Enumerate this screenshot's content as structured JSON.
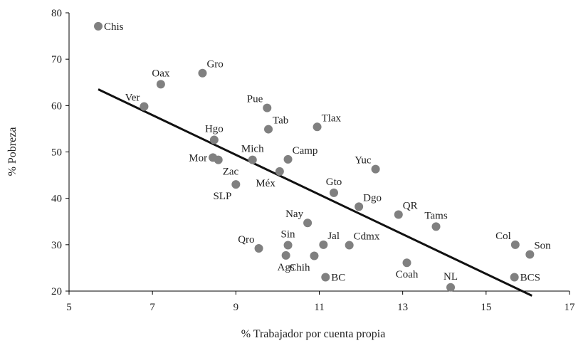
{
  "chart_data": {
    "type": "scatter",
    "title": "",
    "xlabel": "% Trabajador por cuenta propia",
    "ylabel": "% Pobreza",
    "xlim": [
      5,
      17
    ],
    "ylim": [
      20,
      80
    ],
    "xticks": [
      5,
      7,
      9,
      11,
      13,
      15,
      17
    ],
    "yticks": [
      20,
      30,
      40,
      50,
      60,
      70,
      80
    ],
    "grid": false,
    "colors": {
      "points": "#808080",
      "trendline": "#111111",
      "axis": "#000000",
      "text": "#222222"
    },
    "trendline": {
      "x": [
        5.7,
        16.1
      ],
      "y": [
        63.5,
        19.0
      ]
    },
    "points": [
      {
        "label": "Chis",
        "x": 5.7,
        "y": 77.1,
        "pos": "right"
      },
      {
        "label": "Oax",
        "x": 7.2,
        "y": 64.6,
        "pos": "above"
      },
      {
        "label": "Gro",
        "x": 8.2,
        "y": 67.0,
        "pos": "above-right"
      },
      {
        "label": "Ver",
        "x": 6.8,
        "y": 59.8,
        "pos": "above-left"
      },
      {
        "label": "Pue",
        "x": 9.75,
        "y": 59.5,
        "pos": "above-left"
      },
      {
        "label": "Tab",
        "x": 9.78,
        "y": 54.9,
        "pos": "above-right"
      },
      {
        "label": "Tlax",
        "x": 10.95,
        "y": 55.4,
        "pos": "above-right"
      },
      {
        "label": "Hgo",
        "x": 8.48,
        "y": 52.6,
        "pos": "above"
      },
      {
        "label": "Mich",
        "x": 9.4,
        "y": 48.3,
        "pos": "above"
      },
      {
        "label": "Camp",
        "x": 10.25,
        "y": 48.4,
        "pos": "above-right"
      },
      {
        "label": "Mor",
        "x": 8.45,
        "y": 48.8,
        "pos": "left"
      },
      {
        "label": "Zac",
        "x": 8.58,
        "y": 48.3,
        "pos": "below-right"
      },
      {
        "label": "Méx",
        "x": 10.05,
        "y": 45.8,
        "pos": "below-left"
      },
      {
        "label": "SLP",
        "x": 9.0,
        "y": 43.0,
        "pos": "below-left"
      },
      {
        "label": "Yuc",
        "x": 12.35,
        "y": 46.3,
        "pos": "above-left"
      },
      {
        "label": "Gto",
        "x": 11.35,
        "y": 41.2,
        "pos": "above"
      },
      {
        "label": "Dgo",
        "x": 11.95,
        "y": 38.2,
        "pos": "above-right"
      },
      {
        "label": "QR",
        "x": 12.9,
        "y": 36.5,
        "pos": "above-right"
      },
      {
        "label": "Tams",
        "x": 13.8,
        "y": 33.9,
        "pos": "above"
      },
      {
        "label": "Nay",
        "x": 10.72,
        "y": 34.7,
        "pos": "above-left"
      },
      {
        "label": "Qro",
        "x": 9.55,
        "y": 29.2,
        "pos": "above-left"
      },
      {
        "label": "Sin",
        "x": 10.25,
        "y": 29.9,
        "pos": "above"
      },
      {
        "label": "Jal",
        "x": 11.1,
        "y": 30.0,
        "pos": "above-right"
      },
      {
        "label": "Cdmx",
        "x": 11.72,
        "y": 29.9,
        "pos": "above-right"
      },
      {
        "label": "Ags",
        "x": 10.2,
        "y": 27.7,
        "pos": "below"
      },
      {
        "label": "Chih",
        "x": 10.88,
        "y": 27.6,
        "pos": "below-left"
      },
      {
        "label": "BC",
        "x": 11.15,
        "y": 23.0,
        "pos": "right"
      },
      {
        "label": "Coah",
        "x": 13.1,
        "y": 26.1,
        "pos": "below"
      },
      {
        "label": "NL",
        "x": 14.15,
        "y": 20.8,
        "pos": "above"
      },
      {
        "label": "Col",
        "x": 15.7,
        "y": 30.0,
        "pos": "above-left"
      },
      {
        "label": "Son",
        "x": 16.05,
        "y": 27.9,
        "pos": "above-right"
      },
      {
        "label": "BCS",
        "x": 15.68,
        "y": 23.0,
        "pos": "right"
      }
    ]
  }
}
